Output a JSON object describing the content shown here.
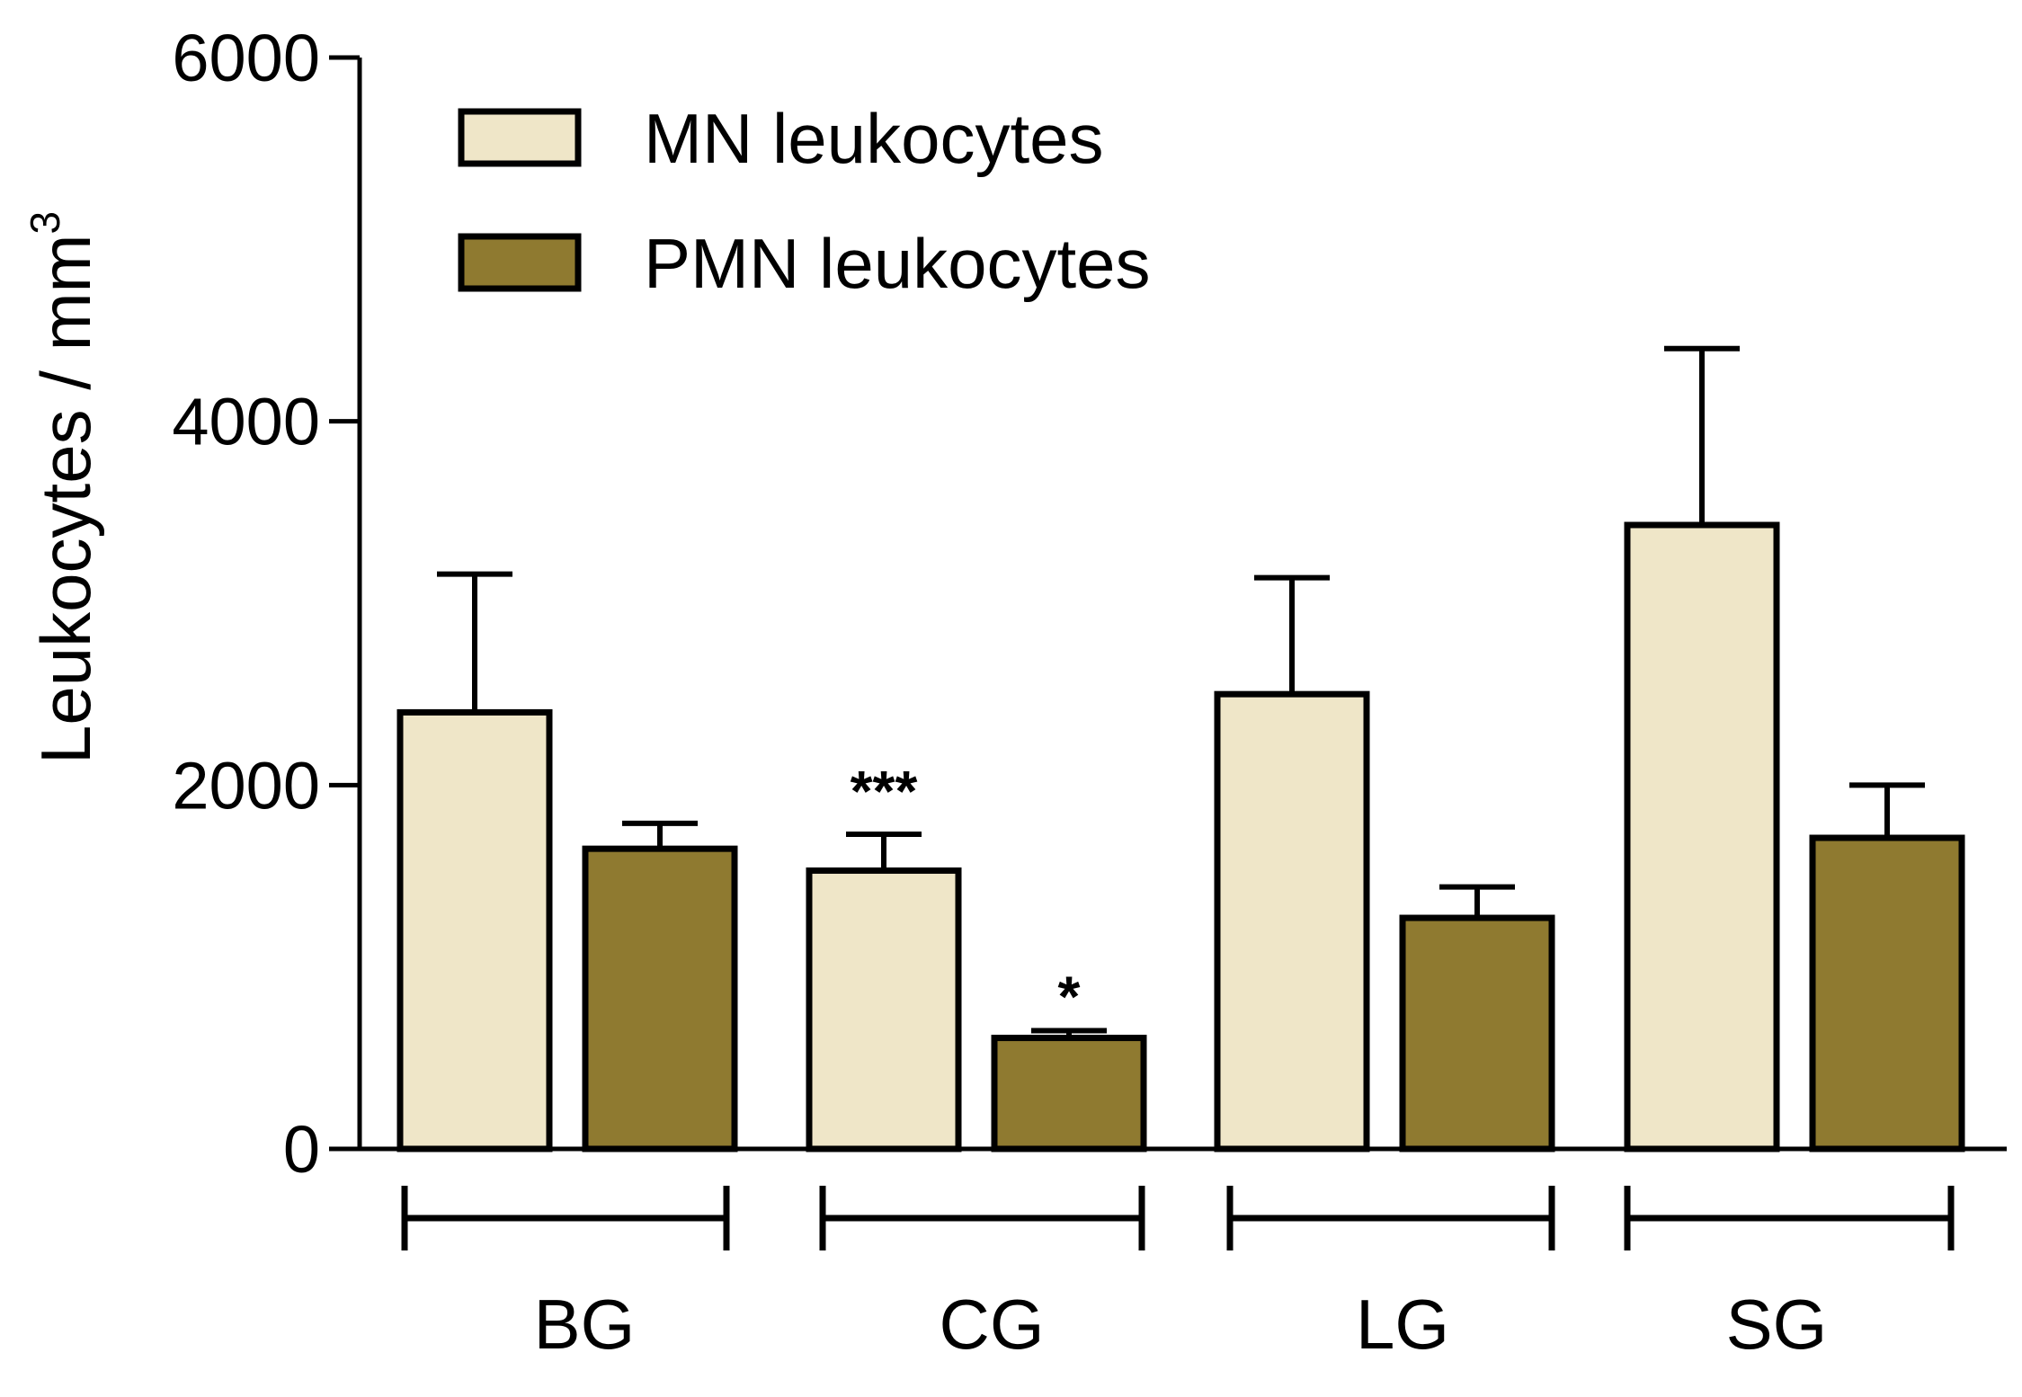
{
  "chart_data": {
    "type": "bar",
    "categories": [
      "BG",
      "CG",
      "LG",
      "SG"
    ],
    "series": [
      {
        "name": "MN leukocytes",
        "color": "#efe6c8",
        "values": [
          2400,
          1530,
          2500,
          3430
        ],
        "errors": [
          760,
          200,
          640,
          970
        ]
      },
      {
        "name": "PMN leukocytes",
        "color": "#8f7a30",
        "values": [
          1650,
          610,
          1270,
          1710
        ],
        "errors": [
          140,
          40,
          170,
          290
        ]
      }
    ],
    "annotations": [
      {
        "category": "CG",
        "series": 0,
        "text": "***"
      },
      {
        "category": "CG",
        "series": 1,
        "text": "*"
      }
    ],
    "ylabel": "Leukocytes / mm",
    "ylabel_sup": "3",
    "ylim": [
      0,
      6000
    ],
    "yticks": [
      0,
      2000,
      4000,
      6000
    ],
    "grid": false,
    "legend_position": "top-left"
  }
}
